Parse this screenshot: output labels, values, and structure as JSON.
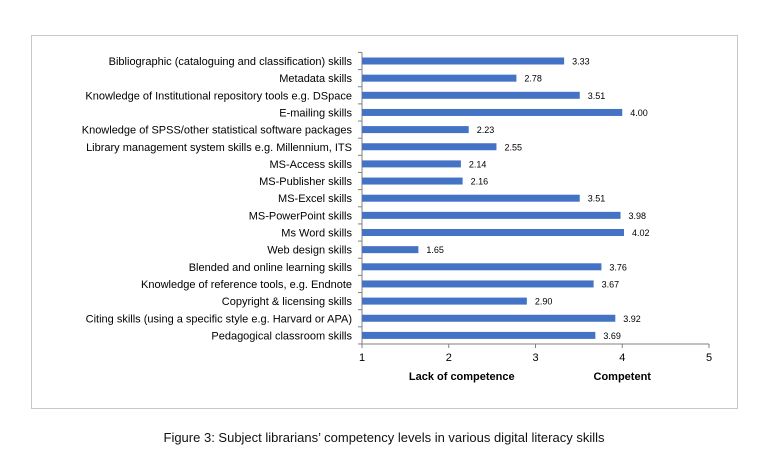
{
  "chart_data": {
    "type": "bar",
    "orientation": "horizontal",
    "categories": [
      "Bibliographic (cataloguing and classification) skills",
      "Metadata skills",
      "Knowledge of Institutional repository tools e.g. DSpace",
      "E-mailing skills",
      "Knowledge of SPSS/other statistical software packages",
      "Library management system skills e.g. Millennium, ITS",
      "MS-Access skills",
      "MS-Publisher skills",
      "MS-Excel skills",
      "MS-PowerPoint skills",
      "Ms Word skills",
      "Web design skills",
      "Blended and online learning skills",
      "Knowledge of reference tools, e.g. Endnote",
      "Copyright & licensing skills",
      "Citing skills (using a specific style e.g. Harvard or APA)",
      "Pedagogical classroom skills"
    ],
    "values": [
      3.33,
      2.78,
      3.51,
      4.0,
      2.23,
      2.55,
      2.14,
      2.16,
      3.51,
      3.98,
      4.02,
      1.65,
      3.76,
      3.67,
      2.9,
      3.92,
      3.69
    ],
    "value_labels": [
      "3.33",
      "2.78",
      "3.51",
      "4.00",
      "2.23",
      "2.55",
      "2.14",
      "2.16",
      "3.51",
      "3.98",
      "4.02",
      "1.65",
      "3.76",
      "3.67",
      "2.90",
      "3.92",
      "3.69"
    ],
    "xlim": [
      1,
      5
    ],
    "x_ticks": [
      "1",
      "2",
      "3",
      "4",
      "5"
    ],
    "axis_notes": [
      "Lack of competence",
      "Competent"
    ],
    "bar_color": "#4472c4",
    "grid": false,
    "legend": "none"
  },
  "caption": "Figure 3: Subject librarians’ competency levels in various digital literacy skills"
}
